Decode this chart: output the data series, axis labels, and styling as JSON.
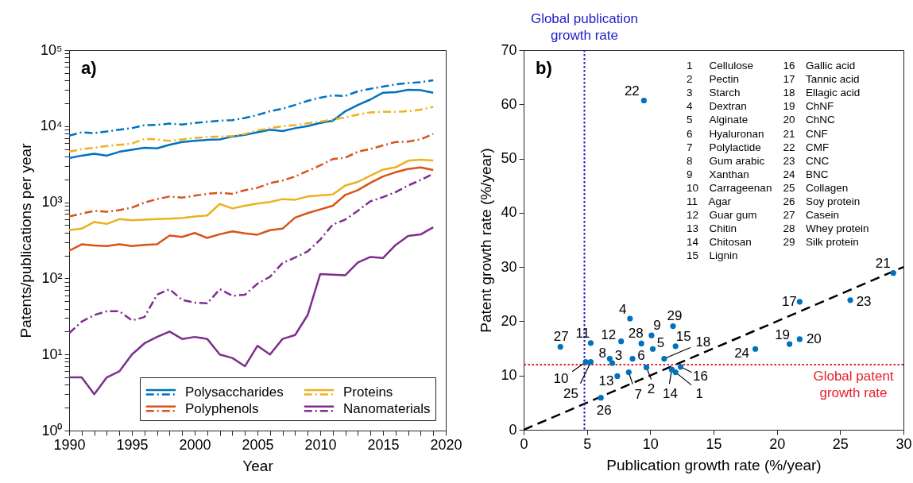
{
  "chart_data": [
    {
      "type": "line",
      "title": "a)",
      "xlabel": "Year",
      "ylabel": "Patents/publications per year",
      "x": [
        1990,
        1991,
        1992,
        1993,
        1994,
        1995,
        1996,
        1997,
        1998,
        1999,
        2000,
        2001,
        2002,
        2003,
        2004,
        2005,
        2006,
        2007,
        2008,
        2009,
        2010,
        2011,
        2012,
        2013,
        2014,
        2015,
        2016,
        2017,
        2018,
        2019
      ],
      "xlim": [
        1990,
        2020
      ],
      "xticks": [
        1990,
        {
          "value": 1991,
          "label": null
        },
        {
          "value": 1992,
          "label": null
        },
        {
          "value": 1993,
          "label": null
        },
        {
          "value": 1994,
          "label": null
        },
        1995,
        {
          "value": 1996,
          "label": null
        },
        {
          "value": 1997,
          "label": null
        },
        {
          "value": 1998,
          "label": null
        },
        {
          "value": 1999,
          "label": null
        },
        2000,
        {
          "value": 2001,
          "label": null
        },
        {
          "value": 2002,
          "label": null
        },
        {
          "value": 2003,
          "label": null
        },
        {
          "value": 2004,
          "label": null
        },
        2005,
        {
          "value": 2006,
          "label": null
        },
        {
          "value": 2007,
          "label": null
        },
        {
          "value": 2008,
          "label": null
        },
        {
          "value": 2009,
          "label": null
        },
        2010,
        {
          "value": 2011,
          "label": null
        },
        {
          "value": 2012,
          "label": null
        },
        {
          "value": 2013,
          "label": null
        },
        {
          "value": 2014,
          "label": null
        },
        2015,
        {
          "value": 2016,
          "label": null
        },
        {
          "value": 2017,
          "label": null
        },
        {
          "value": 2018,
          "label": null
        },
        {
          "value": 2019,
          "label": null
        },
        2020
      ],
      "ylim": [
        1,
        100000
      ],
      "yticks": [
        {
          "value": 1,
          "label": "10⁰"
        },
        {
          "value": 2,
          "label": null
        },
        {
          "value": 3,
          "label": null
        },
        {
          "value": 4,
          "label": null
        },
        {
          "value": 5,
          "label": null
        },
        {
          "value": 6,
          "label": null
        },
        {
          "value": 7,
          "label": null
        },
        {
          "value": 8,
          "label": null
        },
        {
          "value": 9,
          "label": null
        },
        {
          "value": 10,
          "label": "10¹"
        },
        {
          "value": 20,
          "label": null
        },
        {
          "value": 30,
          "label": null
        },
        {
          "value": 40,
          "label": null
        },
        {
          "value": 50,
          "label": null
        },
        {
          "value": 60,
          "label": null
        },
        {
          "value": 70,
          "label": null
        },
        {
          "value": 80,
          "label": null
        },
        {
          "value": 90,
          "label": null
        },
        {
          "value": 100,
          "label": "10²"
        },
        {
          "value": 200,
          "label": null
        },
        {
          "value": 300,
          "label": null
        },
        {
          "value": 400,
          "label": null
        },
        {
          "value": 500,
          "label": null
        },
        {
          "value": 600,
          "label": null
        },
        {
          "value": 700,
          "label": null
        },
        {
          "value": 800,
          "label": null
        },
        {
          "value": 900,
          "label": null
        },
        {
          "value": 1000,
          "label": "10³"
        },
        {
          "value": 2000,
          "label": null
        },
        {
          "value": 3000,
          "label": null
        },
        {
          "value": 4000,
          "label": null
        },
        {
          "value": 5000,
          "label": null
        },
        {
          "value": 6000,
          "label": null
        },
        {
          "value": 7000,
          "label": null
        },
        {
          "value": 8000,
          "label": null
        },
        {
          "value": 9000,
          "label": null
        },
        {
          "value": 10000,
          "label": "10⁴"
        },
        {
          "value": 20000,
          "label": null
        },
        {
          "value": 30000,
          "label": null
        },
        {
          "value": 40000,
          "label": null
        },
        {
          "value": 50000,
          "label": null
        },
        {
          "value": 60000,
          "label": null
        },
        {
          "value": 70000,
          "label": null
        },
        {
          "value": 80000,
          "label": null
        },
        {
          "value": 90000,
          "label": null
        },
        {
          "value": 100000,
          "label": "10⁵"
        }
      ],
      "log": "y",
      "grid": false,
      "legend": "bottom right",
      "series": [
        {
          "color": "#0072bd",
          "line_style": "dashdot",
          "values": [
            7500,
            8300,
            8100,
            8500,
            9000,
            9400,
            10300,
            10400,
            10800,
            10500,
            11000,
            11400,
            11800,
            12000,
            12800,
            14000,
            15700,
            17000,
            19000,
            21500,
            23700,
            25400,
            24900,
            28700,
            31000,
            33100,
            35400,
            36900,
            37800,
            40100
          ]
        },
        {
          "name": "Polysaccharides",
          "color": "#0072bd",
          "line_style": "solid",
          "values": [
            3800,
            4100,
            4350,
            4100,
            4600,
            4900,
            5200,
            5100,
            5700,
            6200,
            6400,
            6600,
            6700,
            7300,
            7700,
            8300,
            9000,
            8600,
            9400,
            10000,
            11000,
            11800,
            15700,
            19000,
            22400,
            27500,
            28000,
            30000,
            29700,
            27500
          ]
        },
        {
          "color": "#edb120",
          "line_style": "dashdot",
          "values": [
            4600,
            5000,
            5200,
            5500,
            5700,
            5900,
            6800,
            6700,
            6400,
            6700,
            7000,
            7200,
            7300,
            7400,
            7900,
            8800,
            9400,
            10000,
            10300,
            10900,
            11500,
            12200,
            13000,
            14200,
            15200,
            15400,
            15400,
            15700,
            16500,
            17900
          ]
        },
        {
          "name": "Proteins",
          "color": "#edb120",
          "line_style": "solid",
          "values": [
            430,
            450,
            550,
            520,
            600,
            580,
            590,
            600,
            610,
            620,
            650,
            670,
            950,
            830,
            900,
            960,
            1010,
            1100,
            1080,
            1190,
            1230,
            1270,
            1660,
            1850,
            2240,
            2690,
            2880,
            3510,
            3630,
            3540
          ]
        },
        {
          "color": "#d95319",
          "line_style": "dashdot",
          "values": [
            650,
            710,
            770,
            750,
            790,
            850,
            990,
            1100,
            1190,
            1150,
            1220,
            1290,
            1330,
            1290,
            1440,
            1550,
            1780,
            1930,
            2180,
            2580,
            3050,
            3690,
            3850,
            4620,
            5010,
            5580,
            6180,
            6280,
            6710,
            7920
          ]
        },
        {
          "name": "Polyphenols",
          "color": "#d95319",
          "line_style": "solid",
          "values": [
            230,
            280,
            270,
            265,
            280,
            265,
            275,
            280,
            365,
            350,
            395,
            340,
            380,
            415,
            390,
            375,
            430,
            450,
            630,
            720,
            805,
            900,
            1250,
            1440,
            1800,
            2180,
            2480,
            2740,
            2870,
            2650
          ]
        },
        {
          "color": "#7e2f8e",
          "line_style": "dashdot",
          "values": [
            19,
            27,
            33,
            37,
            37,
            28,
            31,
            61,
            72,
            52,
            48,
            47,
            72,
            59,
            61,
            85,
            105,
            159,
            188,
            226,
            323,
            510,
            593,
            773,
            1030,
            1170,
            1360,
            1660,
            1960,
            2370
          ]
        },
        {
          "name": "Nanomaterials",
          "color": "#7e2f8e",
          "line_style": "solid",
          "values": [
            5,
            5,
            3,
            5,
            6,
            10,
            14,
            17,
            20,
            16,
            17,
            16,
            10,
            9,
            7,
            13,
            10,
            16,
            18,
            33,
            114,
            112,
            110,
            162,
            191,
            185,
            274,
            360,
            378,
            469
          ]
        }
      ]
    },
    {
      "type": "scatter",
      "title": "b)",
      "xlabel": "Publication growth rate (%/year)",
      "ylabel": "Patent growth rate (%/year)",
      "xlim": [
        0,
        30
      ],
      "xticks": [
        0,
        5,
        10,
        15,
        20,
        25,
        30
      ],
      "ylim": [
        0,
        70
      ],
      "yticks": [
        0,
        10,
        20,
        30,
        40,
        50,
        60,
        70
      ],
      "grid": false,
      "marker": "circle",
      "series": [
        {
          "color": "#0072bd",
          "x": [
            12.0,
            9.7,
            7.0,
            8.4,
            10.2,
            8.6,
            8.3,
            6.8,
            10.1,
            4.9,
            5.3,
            7.7,
            7.4,
            11.7,
            12.0,
            12.4,
            21.8,
            11.1,
            21.0,
            21.8,
            29.2,
            9.5,
            25.8,
            18.3,
            5.3,
            6.1,
            2.9,
            9.3,
            11.8
          ],
          "values": [
            10.6,
            11.5,
            12.3,
            20.5,
            14.9,
            13.1,
            10.6,
            13.1,
            17.4,
            12.5,
            16.0,
            16.3,
            9.9,
            11.1,
            15.4,
            11.6,
            23.6,
            13.1,
            15.8,
            16.7,
            28.9,
            60.7,
            23.9,
            14.9,
            12.5,
            5.9,
            15.3,
            15.9,
            19.1
          ]
        },
        {
          "type": "line",
          "color": "#000000",
          "line_style": "dashed",
          "marker": "none",
          "x": [
            0,
            30
          ],
          "values": [
            0,
            30
          ]
        }
      ],
      "ref_lines": [
        {
          "axis": "x",
          "value": 4.8,
          "label": "Global publication growth rate",
          "color": "#1c1cc8",
          "line_style": "dotted"
        },
        {
          "axis": "y",
          "value": 12,
          "label": "Global patent growth rate",
          "color": "#e4202a",
          "line_style": "dotted"
        }
      ],
      "annotations": [
        "1 Cellulose",
        "2 Pectin",
        "3 Starch",
        "4 Dextran",
        "5 Alginate",
        "6 Hyaluronan",
        "7 Polylactide",
        "8 Gum arabic",
        "9 Xanthan",
        "10 Carrageenan",
        "11 Agar",
        "12 Guar gum",
        "13 Chitin",
        "14 Chitosan",
        "15 Lignin",
        "16 Gallic acid",
        "17 Tannic acid",
        "18 Ellagic acid",
        "19 ChNF",
        "20 ChNC",
        "21 CNF",
        "22 CMF",
        "23 CNC",
        "24 BNC",
        "25 Collagen",
        "26 Soy protein",
        "27 Casein",
        "28 Whey protein",
        "29 Silk protein",
        {
          "text": "1",
          "x": 12.0,
          "y": 10.6
        },
        {
          "text": "2",
          "x": 9.7,
          "y": 11.5
        },
        {
          "text": "3",
          "x": 7.0,
          "y": 12.3
        },
        {
          "text": "4",
          "x": 8.4,
          "y": 20.5
        },
        {
          "text": "5",
          "x": 10.2,
          "y": 14.9
        },
        {
          "text": "6",
          "x": 8.6,
          "y": 13.1
        },
        {
          "text": "7",
          "x": 8.3,
          "y": 10.6
        },
        {
          "text": "8",
          "x": 6.8,
          "y": 13.1
        },
        {
          "text": "9",
          "x": 10.1,
          "y": 17.4
        },
        {
          "text": "10",
          "x": 4.9,
          "y": 12.5
        },
        {
          "text": "11",
          "x": 5.3,
          "y": 16.0
        },
        {
          "text": "12",
          "x": 7.7,
          "y": 16.3
        },
        {
          "text": "13",
          "x": 7.4,
          "y": 9.9
        },
        {
          "text": "14",
          "x": 11.7,
          "y": 11.1
        },
        {
          "text": "15",
          "x": 12.0,
          "y": 15.4
        },
        {
          "text": "16",
          "x": 12.4,
          "y": 11.6
        },
        {
          "text": "17",
          "x": 21.8,
          "y": 23.6
        },
        {
          "text": "18",
          "x": 11.1,
          "y": 13.1
        },
        {
          "text": "19",
          "x": 21.0,
          "y": 15.8
        },
        {
          "text": "20",
          "x": 21.8,
          "y": 16.7
        },
        {
          "text": "21",
          "x": 29.2,
          "y": 28.9
        },
        {
          "text": "22",
          "x": 9.5,
          "y": 60.7
        },
        {
          "text": "23",
          "x": 25.8,
          "y": 23.9
        },
        {
          "text": "24",
          "x": 18.3,
          "y": 14.9
        },
        {
          "text": "25",
          "x": 5.3,
          "y": 12.5
        },
        {
          "text": "26",
          "x": 6.1,
          "y": 5.9
        },
        {
          "text": "27",
          "x": 2.9,
          "y": 15.3
        },
        {
          "text": "28",
          "x": 9.3,
          "y": 15.9
        },
        {
          "text": "29",
          "x": 11.8,
          "y": 19.1
        }
      ]
    }
  ]
}
